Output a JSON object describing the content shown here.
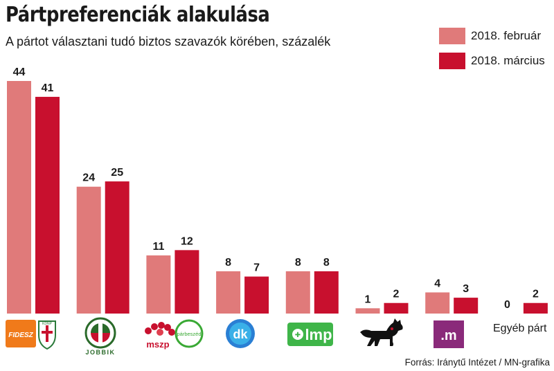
{
  "header": {
    "title": "Pártpreferenciák alakulása",
    "subtitle": "A pártot választani tudó biztos szavazók körében, százalék"
  },
  "footer": {
    "source": "Forrás: Iránytű Intézet / MN-grafika"
  },
  "colors": {
    "february": "#e07a7a",
    "march": "#c8102e"
  },
  "logos": {
    "fidesz": "FIDESZ",
    "kdnp": "KDNP",
    "jobbik": "JOBBIK",
    "mszp": "mszp",
    "parbeszed": "párbeszéd",
    "dk": "dk",
    "lmp": "lmp",
    "momentum": ".m",
    "kutyapart": "dog-icon"
  },
  "chart_data": {
    "type": "bar",
    "categories": [
      "Fidesz-KDNP",
      "Jobbik",
      "MSZP-Párbeszéd",
      "DK",
      "LMP",
      "MKKP",
      "Momentum",
      "Egyéb párt"
    ],
    "category_text": [
      "",
      "",
      "",
      "",
      "",
      "",
      "",
      "Egyéb párt"
    ],
    "series": [
      {
        "name": "2018. február",
        "values": [
          44,
          24,
          11,
          8,
          8,
          1,
          4,
          0
        ]
      },
      {
        "name": "2018. március",
        "values": [
          41,
          25,
          12,
          7,
          8,
          2,
          3,
          2
        ]
      }
    ],
    "ylim": [
      0,
      44
    ],
    "grid": false,
    "legend": "top-right"
  }
}
